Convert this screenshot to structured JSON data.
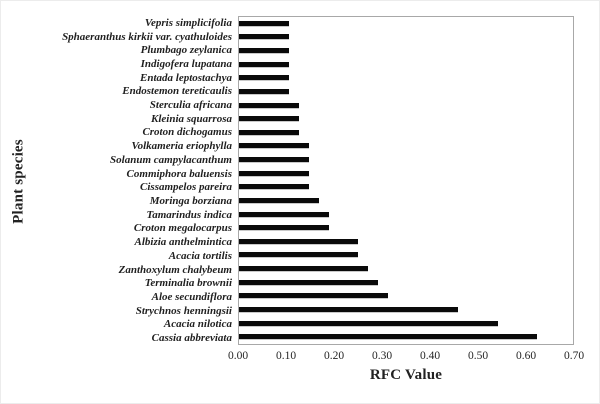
{
  "chart_data": {
    "type": "bar",
    "orientation": "horizontal",
    "title": "",
    "xlabel": "RFC Value",
    "ylabel": "Plant species",
    "xlim": [
      0,
      0.7
    ],
    "xtick_labels": [
      "0.00",
      "0.10",
      "0.20",
      "0.30",
      "0.40",
      "0.50",
      "0.60",
      "0.70"
    ],
    "grid": false,
    "legend": "none",
    "bar_color": "#0a0a0a",
    "frame_color": "#a8a8a8",
    "categories": [
      "Vepris simplicifolia",
      "Sphaeranthus kirkii var. cyathuloides",
      "Plumbago zeylanica",
      "Indigofera lupatana",
      "Entada leptostachya",
      "Endostemon tereticaulis",
      "Sterculia africana",
      "Kleinia squarrosa",
      "Croton dichogamus",
      "Volkameria eriophylla",
      "Solanum campylacanthum",
      "Commiphora baluensis",
      "Cissampelos pareira",
      "Moringa borziana",
      "Tamarindus indica",
      "Croton megalocarpus",
      "Albizia anthelmintica",
      "Acacia tortilis",
      "Zanthoxylum chalybeum",
      "Terminalia brownii",
      "Aloe secundiflora",
      "Strychnos henningsii",
      "Acacia nilotica",
      "Cassia abbreviata"
    ],
    "values": [
      0.104,
      0.104,
      0.104,
      0.104,
      0.104,
      0.104,
      0.125,
      0.125,
      0.125,
      0.146,
      0.146,
      0.146,
      0.146,
      0.167,
      0.188,
      0.188,
      0.25,
      0.25,
      0.271,
      0.292,
      0.313,
      0.458,
      0.542,
      0.625
    ]
  }
}
